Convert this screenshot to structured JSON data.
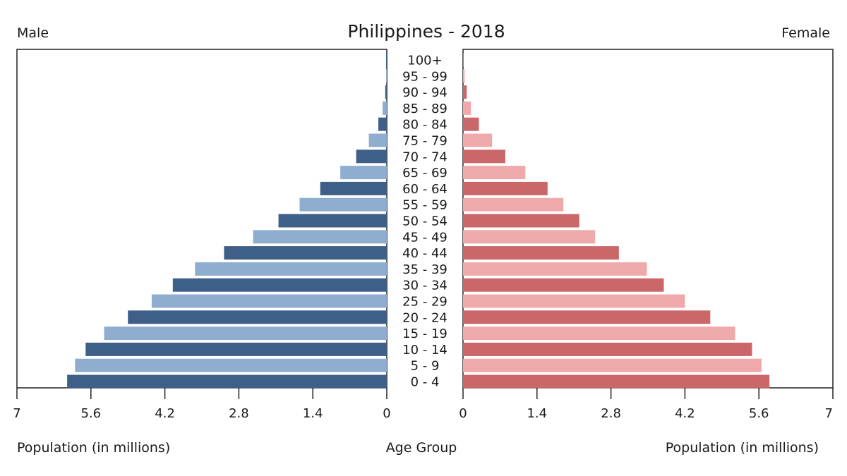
{
  "chart_data": {
    "type": "bar",
    "title": "Philippines - 2018",
    "left_label": "Male",
    "right_label": "Female",
    "center_label": "Age Group",
    "xlabel_left": "Population (in millions)",
    "xlabel_right": "Population (in millions)",
    "xlim": [
      0,
      7
    ],
    "ticks": [
      "7",
      "5.6",
      "4.2",
      "2.8",
      "1.4",
      "0",
      "0",
      "1.4",
      "2.8",
      "4.2",
      "5.6",
      "7"
    ],
    "categories": [
      "0 - 4",
      "5 - 9",
      "10 - 14",
      "15 - 19",
      "20 - 24",
      "25 - 29",
      "30 - 34",
      "35 - 39",
      "40 - 44",
      "45 - 49",
      "50 - 54",
      "55 - 59",
      "60 - 64",
      "65 - 69",
      "70 - 74",
      "75 - 79",
      "80 - 84",
      "85 - 89",
      "90 - 94",
      "95 - 99",
      "100+"
    ],
    "series": [
      {
        "name": "Male",
        "values": [
          6.05,
          5.9,
          5.7,
          5.35,
          4.9,
          4.45,
          4.05,
          3.63,
          3.08,
          2.53,
          2.05,
          1.65,
          1.26,
          0.88,
          0.58,
          0.34,
          0.16,
          0.08,
          0.03,
          0.01,
          0.005
        ]
      },
      {
        "name": "Female",
        "values": [
          5.8,
          5.65,
          5.47,
          5.15,
          4.68,
          4.2,
          3.8,
          3.48,
          2.95,
          2.5,
          2.2,
          1.9,
          1.6,
          1.18,
          0.8,
          0.55,
          0.3,
          0.15,
          0.07,
          0.03,
          0.01
        ]
      }
    ],
    "colors": {
      "male_dark": "#3e5f87",
      "male_light": "#8fadcf",
      "female_dark": "#c96769",
      "female_light": "#f0a9aa"
    },
    "grid": false
  }
}
